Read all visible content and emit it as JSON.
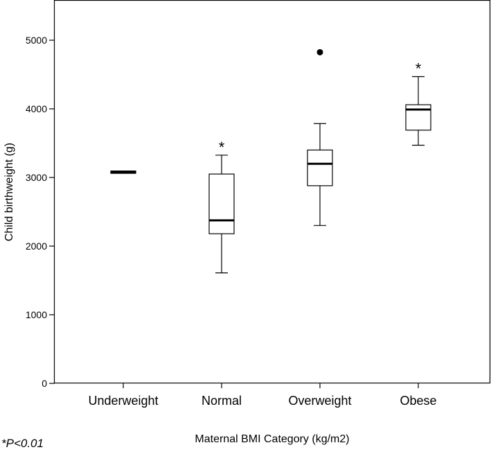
{
  "chart_data": {
    "type": "boxplot",
    "xlabel": "Maternal BMI Category (kg/m2)",
    "ylabel": "Child birthweight (g)",
    "ylim": [
      0,
      5500
    ],
    "yticks": [
      0,
      1000,
      2000,
      3000,
      4000,
      5000
    ],
    "grid": false,
    "categories": [
      "Underweight",
      "Normal",
      "Overweight",
      "Obese"
    ],
    "boxes": [
      {
        "category": "Underweight",
        "min": 3055,
        "q1": 3060,
        "median": 3075,
        "q3": 3095,
        "max": 3100,
        "outliers": [],
        "significance": ""
      },
      {
        "category": "Normal",
        "min": 1610,
        "q1": 2180,
        "median": 2375,
        "q3": 3050,
        "max": 3325,
        "outliers": [],
        "significance": "*"
      },
      {
        "category": "Overweight",
        "min": 2300,
        "q1": 2880,
        "median": 3200,
        "q3": 3400,
        "max": 3785,
        "outliers": [
          4825
        ],
        "significance": ""
      },
      {
        "category": "Obese",
        "min": 3470,
        "q1": 3690,
        "median": 3990,
        "q3": 4060,
        "max": 4470,
        "outliers": [],
        "significance": "*"
      }
    ],
    "footnote": "*P<0.01"
  }
}
